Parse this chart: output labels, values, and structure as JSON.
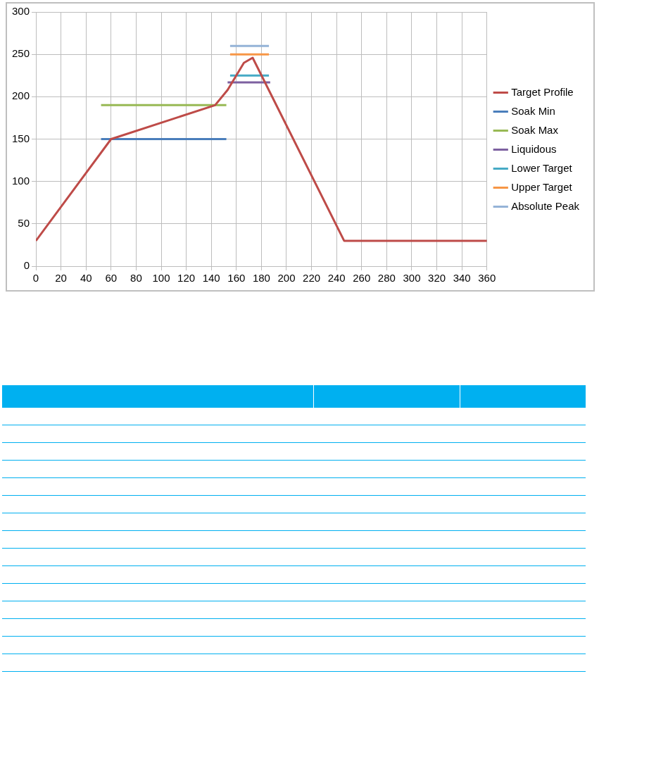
{
  "chart_data": {
    "type": "line",
    "xlim": [
      0,
      360
    ],
    "xticks": [
      0,
      20,
      40,
      60,
      80,
      100,
      120,
      140,
      160,
      180,
      200,
      220,
      240,
      260,
      280,
      300,
      320,
      340,
      360
    ],
    "ylim": [
      0,
      300
    ],
    "yticks": [
      0,
      50,
      100,
      150,
      200,
      250,
      300
    ],
    "grid": true,
    "legend": "right",
    "marker": "none",
    "series": [
      {
        "name": "Target Profile",
        "color": "#be4b48",
        "x": [
          0,
          60,
          143,
          153,
          166,
          173,
          246,
          360
        ],
        "values": [
          30,
          150,
          190,
          208,
          240,
          246,
          30,
          30
        ]
      },
      {
        "name": "Soak Min",
        "color": "#4a7ebb",
        "x": [
          52,
          152
        ],
        "values": [
          150,
          150
        ]
      },
      {
        "name": "Soak Max",
        "color": "#98b954",
        "x": [
          52,
          152
        ],
        "values": [
          190,
          190
        ]
      },
      {
        "name": "Liquidous",
        "color": "#7d60a0",
        "x": [
          153,
          187
        ],
        "values": [
          217,
          217
        ]
      },
      {
        "name": "Lower Target",
        "color": "#46aac5",
        "x": [
          155,
          186
        ],
        "values": [
          225,
          225
        ]
      },
      {
        "name": "Upper Target",
        "color": "#f79646",
        "x": [
          155,
          186
        ],
        "values": [
          250,
          250
        ]
      },
      {
        "name": "Absolute Peak",
        "color": "#95b3d7",
        "x": [
          155,
          186
        ],
        "values": [
          260,
          260
        ]
      }
    ]
  }
}
